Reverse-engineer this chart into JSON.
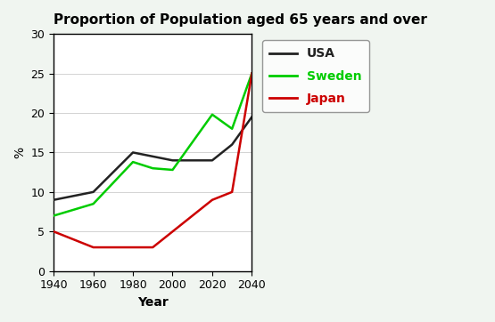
{
  "title": "Proportion of Population aged 65 years and over",
  "xlabel": "Year",
  "ylabel": "%",
  "years": [
    1940,
    1960,
    1980,
    1990,
    2000,
    2020,
    2030,
    2040
  ],
  "usa": [
    9,
    10,
    15,
    14.5,
    14,
    14,
    16,
    19.5
  ],
  "sweden": [
    7,
    8.5,
    13.8,
    13,
    12.8,
    19.8,
    18,
    25
  ],
  "japan": [
    5,
    3,
    3,
    3,
    5,
    9,
    10,
    25
  ],
  "usa_color": "#222222",
  "sweden_color": "#00cc00",
  "japan_color": "#cc0000",
  "ylim": [
    0,
    30
  ],
  "xlim": [
    1940,
    2040
  ],
  "xticks": [
    1940,
    1960,
    1980,
    2000,
    2020,
    2040
  ],
  "yticks": [
    0,
    5,
    10,
    15,
    20,
    25,
    30
  ],
  "plot_bg": "#ffffff",
  "fig_bg": "#f0f5f0",
  "legend_labels": [
    "USA",
    "Sweden",
    "Japan"
  ],
  "legend_colors": [
    "#222222",
    "#00cc00",
    "#cc0000"
  ],
  "title_fontsize": 11,
  "axis_label_fontsize": 10,
  "tick_fontsize": 9,
  "legend_fontsize": 10
}
